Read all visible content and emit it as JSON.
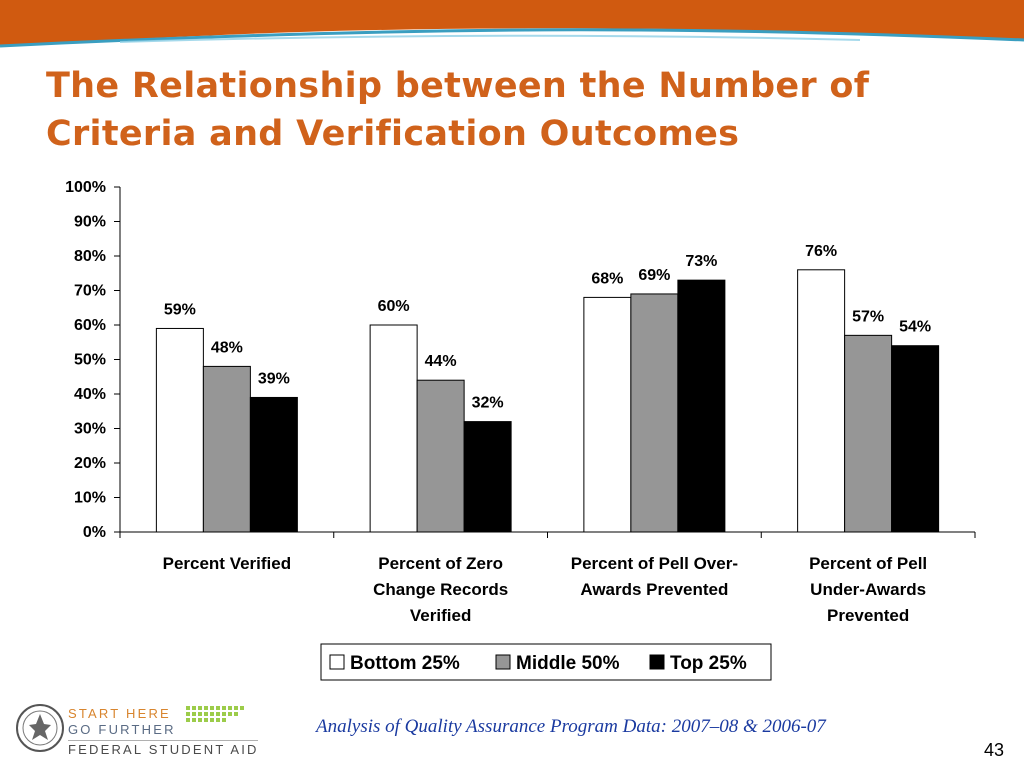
{
  "slide": {
    "title": "The Relationship between the Number of Criteria and Verification Outcomes",
    "footer": "Analysis of Quality Assurance Program Data: 2007–08 & 2006-07",
    "page_number": "43",
    "logo": {
      "line1": "START HERE",
      "line2": "GO FURTHER",
      "line3": "FEDERAL STUDENT AID"
    },
    "colors": {
      "title": "#d0621b",
      "band": "#d05a10",
      "band_accent": "#3a9ec0",
      "footer_text": "#1a3aa0"
    }
  },
  "chart_data": {
    "type": "bar",
    "categories": [
      [
        "Percent Verified"
      ],
      [
        "Percent of Zero",
        "Change Records",
        "Verified"
      ],
      [
        "Percent of Pell Over-",
        "Awards Prevented"
      ],
      [
        "Percent of Pell",
        "Under-Awards",
        "Prevented"
      ]
    ],
    "series": [
      {
        "name": "Bottom 25%",
        "color": "#ffffff",
        "values": [
          59,
          60,
          68,
          76
        ],
        "labels": [
          "59%",
          "60%",
          "68%",
          "76%"
        ]
      },
      {
        "name": "Middle 50%",
        "color": "#969696",
        "values": [
          48,
          44,
          69,
          57
        ],
        "labels": [
          "48%",
          "44%",
          "69%",
          "57%"
        ]
      },
      {
        "name": "Top 25%",
        "color": "#000000",
        "values": [
          39,
          32,
          73,
          54
        ],
        "labels": [
          "39%",
          "32%",
          "73%",
          "54%"
        ]
      }
    ],
    "ylim": [
      0,
      100
    ],
    "yticks": [
      "0%",
      "10%",
      "20%",
      "30%",
      "40%",
      "50%",
      "60%",
      "70%",
      "80%",
      "90%",
      "100%"
    ],
    "grid": false,
    "legend_position": "bottom"
  }
}
